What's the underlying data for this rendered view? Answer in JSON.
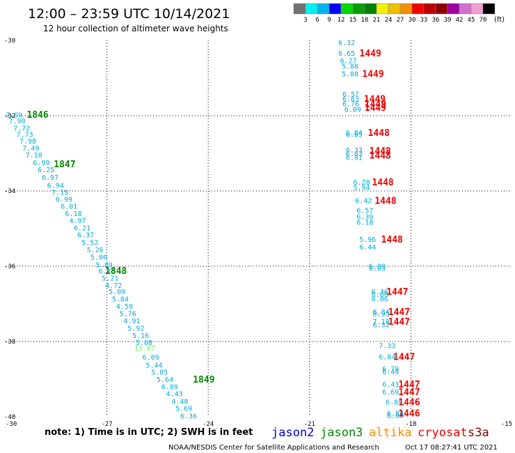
{
  "title": "12:00 – 23:59 UTC 10/14/2021",
  "subtitle": "12 hour collection of altimeter wave heights",
  "footer_note": "note: 1) Time is in UTC; 2) SWH is in feet",
  "credit": "NOAA/NESDIS Center for Satellite Applications and Research",
  "timestamp": "Oct 17 08:27:41 UTC 2021",
  "legend": {
    "unit": "(ft)",
    "ticks": [
      "3",
      "6",
      "9",
      "12",
      "15",
      "18",
      "21",
      "24",
      "27",
      "30",
      "33",
      "36",
      "39",
      "42",
      "45",
      "70"
    ],
    "colors": [
      "#707070",
      "#00f0f0",
      "#00b4f0",
      "#0000f0",
      "#00d800",
      "#00a000",
      "#008000",
      "#f0f000",
      "#f0c000",
      "#f09000",
      "#f00000",
      "#c00000",
      "#900000",
      "#a000a0",
      "#d070d0",
      "#f0a0d0",
      "#000000"
    ]
  },
  "satellites": [
    {
      "name": "jason2",
      "color": "#0000ee"
    },
    {
      "name": "jason3",
      "color": "#008800"
    },
    {
      "name": "altika",
      "color": "#ff8800"
    },
    {
      "name": "cryosat",
      "color": "#ee0000"
    },
    {
      "name": "s3a",
      "color": "#880000"
    }
  ],
  "chart_data": {
    "type": "scatter",
    "xlim": [
      -30,
      -15
    ],
    "ylim": [
      -40,
      -30
    ],
    "x_ticks": [
      "-30",
      "-27",
      "-24",
      "-21",
      "-18",
      "-15"
    ],
    "y_ticks": [
      "-30",
      "-32",
      "-34",
      "-36",
      "-38",
      "-40"
    ],
    "grid": true,
    "series": [
      {
        "name": "jason3",
        "color": "#008800",
        "points": [
          {
            "x": -29.75,
            "y": -31.97,
            "v": "7.69"
          },
          {
            "x": -29.66,
            "y": -32.13,
            "v": "7.90"
          },
          {
            "x": -29.52,
            "y": -32.32,
            "v": "7.72"
          },
          {
            "x": -29.43,
            "y": -32.49,
            "v": "7.73"
          },
          {
            "x": -29.34,
            "y": -32.67,
            "v": "7.98"
          },
          {
            "x": -29.25,
            "y": -32.85,
            "v": "7.49"
          },
          {
            "x": -29.16,
            "y": -33.04,
            "v": "7.10"
          },
          {
            "x": -28.94,
            "y": -33.24,
            "v": "6.99"
          },
          {
            "x": -28.8,
            "y": -33.43,
            "v": "6.25"
          },
          {
            "x": -28.68,
            "y": -33.63,
            "v": "6.97"
          },
          {
            "x": -28.52,
            "y": -33.84,
            "v": "6.94"
          },
          {
            "x": -28.39,
            "y": -34.03,
            "v": "7.15"
          },
          {
            "x": -28.27,
            "y": -34.21,
            "v": "6.99"
          },
          {
            "x": -28.12,
            "y": -34.4,
            "v": "6.01"
          },
          {
            "x": -27.99,
            "y": -34.59,
            "v": "6.18"
          },
          {
            "x": -27.87,
            "y": -34.78,
            "v": "4.97"
          },
          {
            "x": -27.73,
            "y": -34.97,
            "v": "6.21"
          },
          {
            "x": -27.63,
            "y": -35.16,
            "v": "6.37"
          },
          {
            "x": -27.5,
            "y": -35.36,
            "v": "5.52"
          },
          {
            "x": -27.35,
            "y": -35.56,
            "v": "5.26"
          },
          {
            "x": -27.24,
            "y": -35.75,
            "v": "5.00"
          },
          {
            "x": -27.08,
            "y": -35.95,
            "v": "5.89"
          },
          {
            "x": -27.0,
            "y": -36.12,
            "v": "6.25"
          },
          {
            "x": -26.9,
            "y": -36.31,
            "v": "5.21"
          },
          {
            "x": -26.8,
            "y": -36.5,
            "v": "4.72"
          },
          {
            "x": -26.7,
            "y": -36.67,
            "v": "5.09"
          },
          {
            "x": -26.6,
            "y": -36.86,
            "v": "5.84"
          },
          {
            "x": -26.48,
            "y": -37.06,
            "v": "4.59"
          },
          {
            "x": -26.38,
            "y": -37.25,
            "v": "5.76"
          },
          {
            "x": -26.26,
            "y": -37.44,
            "v": "4.91"
          },
          {
            "x": -26.14,
            "y": -37.64,
            "v": "5.92"
          },
          {
            "x": -26.0,
            "y": -37.83,
            "v": "5.16"
          },
          {
            "x": -25.9,
            "y": -38.02,
            "v": "5.68"
          },
          {
            "x": -25.88,
            "y": -38.17,
            "v": "13.07",
            "c": "#66ee66"
          },
          {
            "x": -25.7,
            "y": -38.41,
            "v": "6.09"
          },
          {
            "x": -25.6,
            "y": -38.62,
            "v": "5.44"
          },
          {
            "x": -25.44,
            "y": -38.81,
            "v": "5.85"
          },
          {
            "x": -25.28,
            "y": -39.0,
            "v": "5.64"
          },
          {
            "x": -25.14,
            "y": -39.19,
            "v": "6.89"
          },
          {
            "x": -25.0,
            "y": -39.38,
            "v": "4.43"
          },
          {
            "x": -24.84,
            "y": -39.58,
            "v": "4.48"
          },
          {
            "x": -24.72,
            "y": -39.77,
            "v": "5.69"
          },
          {
            "x": -24.58,
            "y": -39.97,
            "v": "6.36"
          }
        ],
        "time_labels": [
          {
            "x": -29.05,
            "y": -31.96,
            "v": "1846"
          },
          {
            "x": -28.25,
            "y": -33.28,
            "v": "1847"
          },
          {
            "x": -26.73,
            "y": -36.11,
            "v": "1848"
          },
          {
            "x": -24.13,
            "y": -39.0,
            "v": "1849"
          }
        ]
      },
      {
        "name": "cryosat",
        "color": "#ee0000",
        "points": [
          {
            "x": -19.9,
            "y": -30.05,
            "v": "6.32"
          },
          {
            "x": -19.9,
            "y": -30.33,
            "v": "6.65"
          },
          {
            "x": -19.85,
            "y": -30.53,
            "v": "6.27"
          },
          {
            "x": -19.8,
            "y": -30.68,
            "v": "5.88"
          },
          {
            "x": -19.8,
            "y": -30.88,
            "v": "5.88"
          },
          {
            "x": -19.78,
            "y": -31.42,
            "v": "6.57"
          },
          {
            "x": -19.78,
            "y": -31.55,
            "v": "6.63"
          },
          {
            "x": -19.78,
            "y": -31.68,
            "v": "6.76"
          },
          {
            "x": -19.72,
            "y": -31.82,
            "v": "6.09"
          },
          {
            "x": -19.68,
            "y": -32.44,
            "v": "6.84"
          },
          {
            "x": -19.68,
            "y": -32.49,
            "v": "6.85"
          },
          {
            "x": -19.68,
            "y": -32.9,
            "v": "6.33"
          },
          {
            "x": -19.68,
            "y": -33.0,
            "v": "6.03"
          },
          {
            "x": -19.68,
            "y": -33.1,
            "v": "6.91"
          },
          {
            "x": -19.46,
            "y": -33.76,
            "v": "6.28"
          },
          {
            "x": -19.46,
            "y": -33.9,
            "v": "5.94"
          },
          {
            "x": -19.4,
            "y": -34.25,
            "v": "6.42"
          },
          {
            "x": -19.36,
            "y": -34.51,
            "v": "6.57"
          },
          {
            "x": -19.36,
            "y": -34.68,
            "v": "6.39"
          },
          {
            "x": -19.36,
            "y": -34.82,
            "v": "6.18"
          },
          {
            "x": -19.28,
            "y": -35.28,
            "v": "5.96"
          },
          {
            "x": -19.28,
            "y": -35.48,
            "v": "6.44"
          },
          {
            "x": -19.0,
            "y": -35.99,
            "v": "6.89"
          },
          {
            "x": -19.0,
            "y": -36.05,
            "v": "6.83"
          },
          {
            "x": -18.92,
            "y": -36.67,
            "v": "6.36"
          },
          {
            "x": -18.92,
            "y": -36.74,
            "v": "6.60"
          },
          {
            "x": -18.92,
            "y": -36.86,
            "v": "6.06"
          },
          {
            "x": -18.88,
            "y": -37.2,
            "v": "6.84"
          },
          {
            "x": -18.88,
            "y": -37.26,
            "v": "6.93"
          },
          {
            "x": -18.88,
            "y": -37.46,
            "v": "7.19"
          },
          {
            "x": -18.88,
            "y": -37.55,
            "v": "6.32"
          },
          {
            "x": -18.7,
            "y": -38.1,
            "v": "7.33"
          },
          {
            "x": -18.7,
            "y": -38.4,
            "v": "6.84"
          },
          {
            "x": -18.6,
            "y": -38.71,
            "v": "6.79"
          },
          {
            "x": -18.6,
            "y": -38.8,
            "v": "6.49"
          },
          {
            "x": -18.6,
            "y": -39.13,
            "v": "6.43"
          },
          {
            "x": -18.6,
            "y": -39.33,
            "v": "6.69"
          },
          {
            "x": -18.5,
            "y": -39.6,
            "v": "6.89"
          },
          {
            "x": -18.46,
            "y": -39.9,
            "v": "6.84"
          },
          {
            "x": -18.46,
            "y": -39.96,
            "v": "6.66"
          }
        ],
        "time_labels": [
          {
            "x": -19.2,
            "y": -30.33,
            "v": "1449"
          },
          {
            "x": -19.12,
            "y": -30.88,
            "v": "1449"
          },
          {
            "x": -19.07,
            "y": -31.55,
            "v": "1449"
          },
          {
            "x": -19.05,
            "y": -31.68,
            "v": "1449"
          },
          {
            "x": -19.05,
            "y": -31.78,
            "v": "1449"
          },
          {
            "x": -18.95,
            "y": -32.44,
            "v": "1448"
          },
          {
            "x": -18.91,
            "y": -32.93,
            "v": "1448"
          },
          {
            "x": -18.91,
            "y": -33.05,
            "v": "1448"
          },
          {
            "x": -18.83,
            "y": -33.76,
            "v": "1448"
          },
          {
            "x": -18.75,
            "y": -34.25,
            "v": "1448"
          },
          {
            "x": -18.56,
            "y": -35.28,
            "v": "1448"
          },
          {
            "x": -18.4,
            "y": -36.67,
            "v": "1447"
          },
          {
            "x": -18.35,
            "y": -37.2,
            "v": "1447"
          },
          {
            "x": -18.35,
            "y": -37.46,
            "v": "1447"
          },
          {
            "x": -18.2,
            "y": -38.4,
            "v": "1447"
          },
          {
            "x": -18.05,
            "y": -39.13,
            "v": "1447"
          },
          {
            "x": -18.05,
            "y": -39.33,
            "v": "1447"
          },
          {
            "x": -18.05,
            "y": -39.6,
            "v": "1446"
          },
          {
            "x": -18.05,
            "y": -39.9,
            "v": "1446"
          }
        ]
      }
    ]
  }
}
